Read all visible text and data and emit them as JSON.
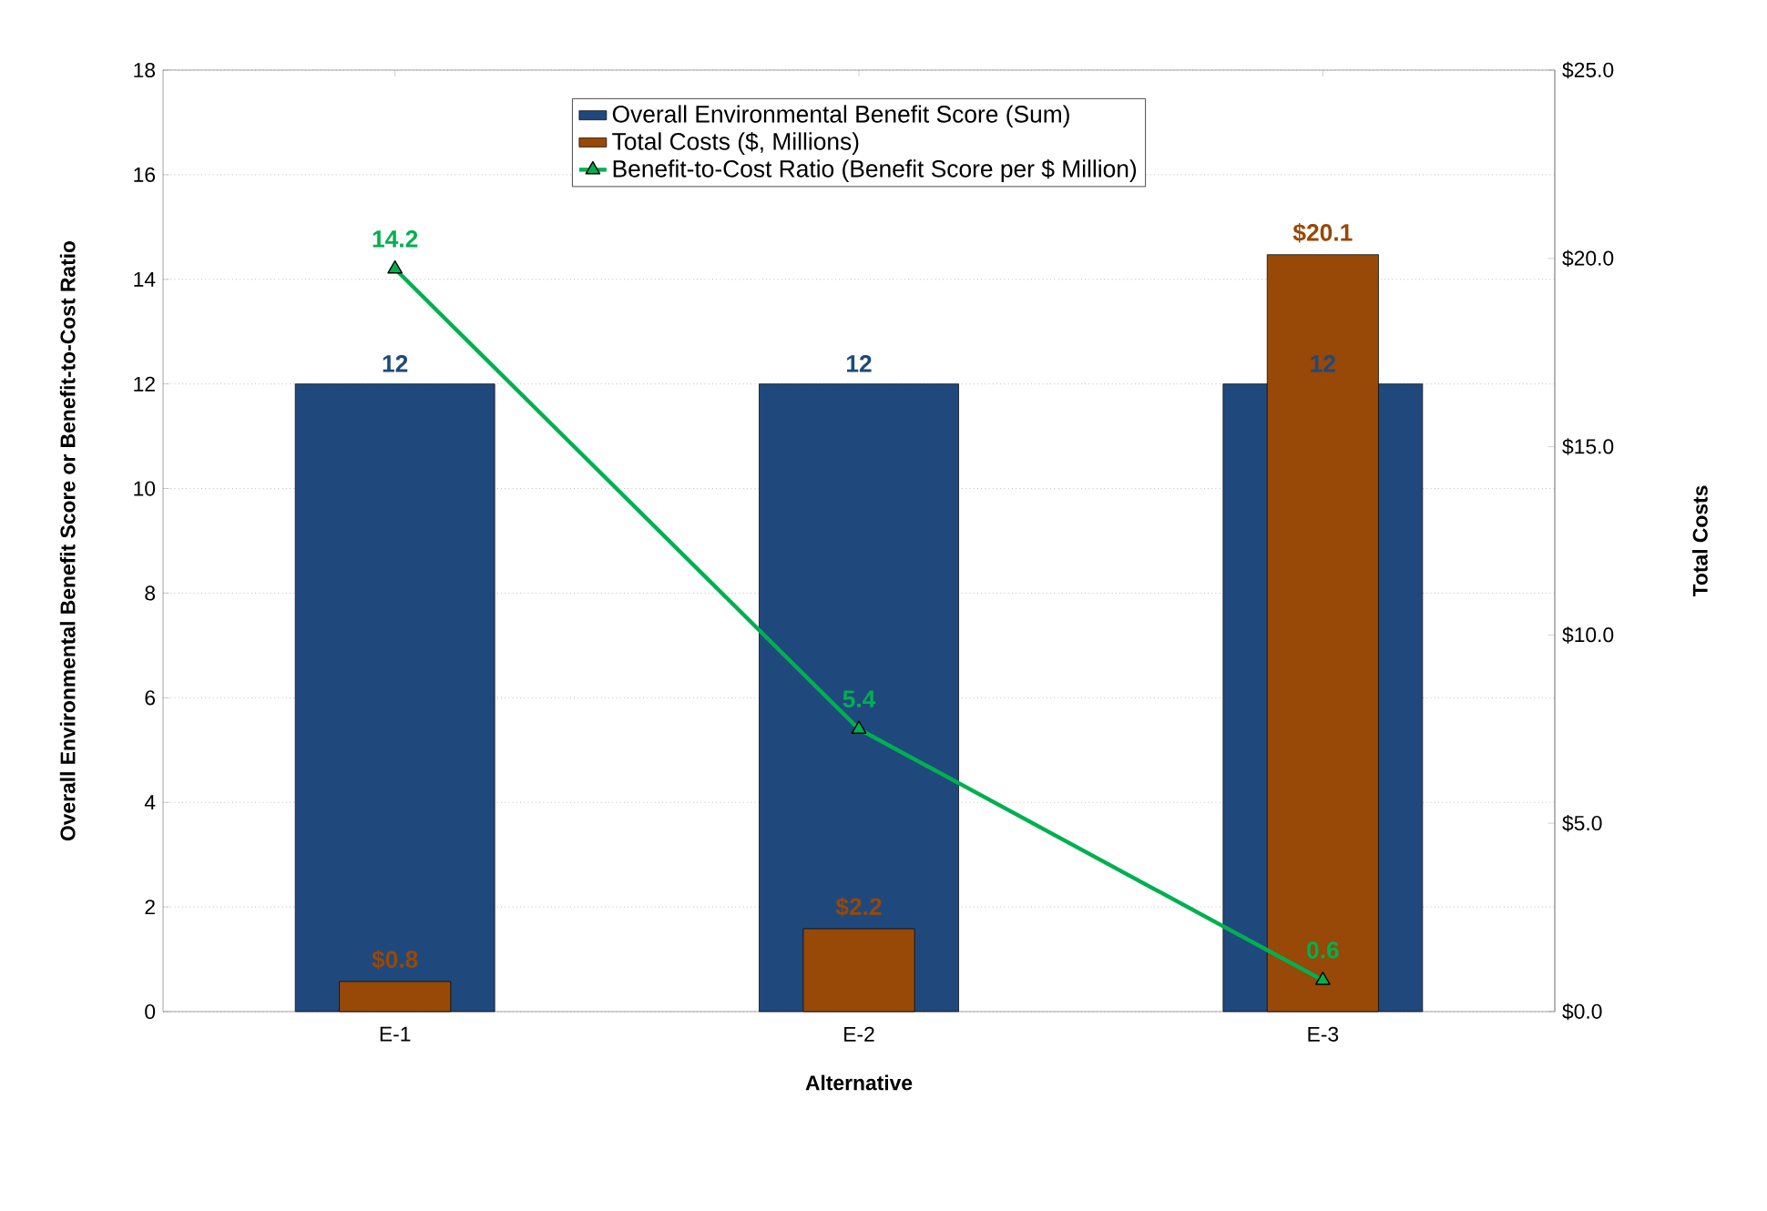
{
  "chart_data": {
    "type": "bar",
    "xlabel": "Alternative",
    "ylabel": "Overall Environmental Benefit Score or Benefit-to-Cost Ratio",
    "y2label": "Total Costs",
    "categories": [
      "E-1",
      "E-2",
      "E-3"
    ],
    "series": [
      {
        "name": "Overall Environmental Benefit Score (Sum)",
        "color": "#1f497d",
        "values": [
          12,
          12,
          12
        ],
        "value_labels": [
          "12",
          "12",
          "12"
        ]
      },
      {
        "name": "Total Costs ($, Millions)",
        "axis": "y2",
        "color": "#984807",
        "values": [
          0.8,
          2.2,
          20.1
        ],
        "value_labels": [
          "$0.8",
          "$2.2",
          "$20.1"
        ]
      },
      {
        "name": "Benefit-to-Cost Ratio (Benefit Score per $ Million)",
        "type": "line",
        "color": "#00b050",
        "marker": "triangle",
        "values": [
          14.2,
          5.4,
          0.6
        ],
        "value_labels": [
          "14.2",
          "5.4",
          "0.6"
        ]
      }
    ],
    "ylim": [
      0,
      18
    ],
    "yticks": [
      0,
      2,
      4,
      6,
      8,
      10,
      12,
      14,
      16,
      18
    ],
    "y2lim": [
      0,
      25
    ],
    "y2ticks": [
      {
        "value": 0,
        "label": "$0.0"
      },
      {
        "value": 5,
        "label": "$5.0"
      },
      {
        "value": 10,
        "label": "$10.0"
      },
      {
        "value": 15,
        "label": "$15.0"
      },
      {
        "value": 20,
        "label": "$20.0"
      },
      {
        "value": 25,
        "label": "$25.0"
      }
    ],
    "grid": "y",
    "legend": "top"
  }
}
